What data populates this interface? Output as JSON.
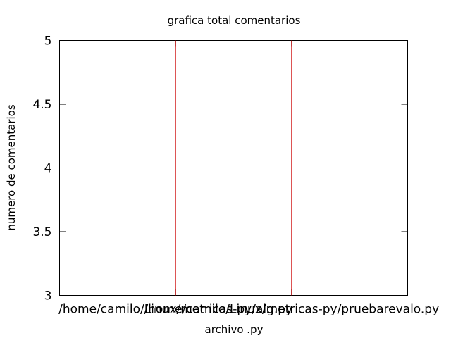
{
  "chart_data": {
    "type": "bar",
    "title": "grafica total comentarios",
    "xlabel": "archivo .py",
    "ylabel": "numero de comentarios",
    "ylim": [
      3,
      5
    ],
    "yticks": [
      "3",
      "3.5",
      "4",
      "4.5",
      "5"
    ],
    "categories": [
      "/home/camilo/Linux/metricas-py/alg.py",
      "/home/camilo/Linux/metricas-py/pruebarevalo.py"
    ],
    "values": [
      5,
      5
    ],
    "grid": false,
    "bar_color": "#cc0000"
  }
}
